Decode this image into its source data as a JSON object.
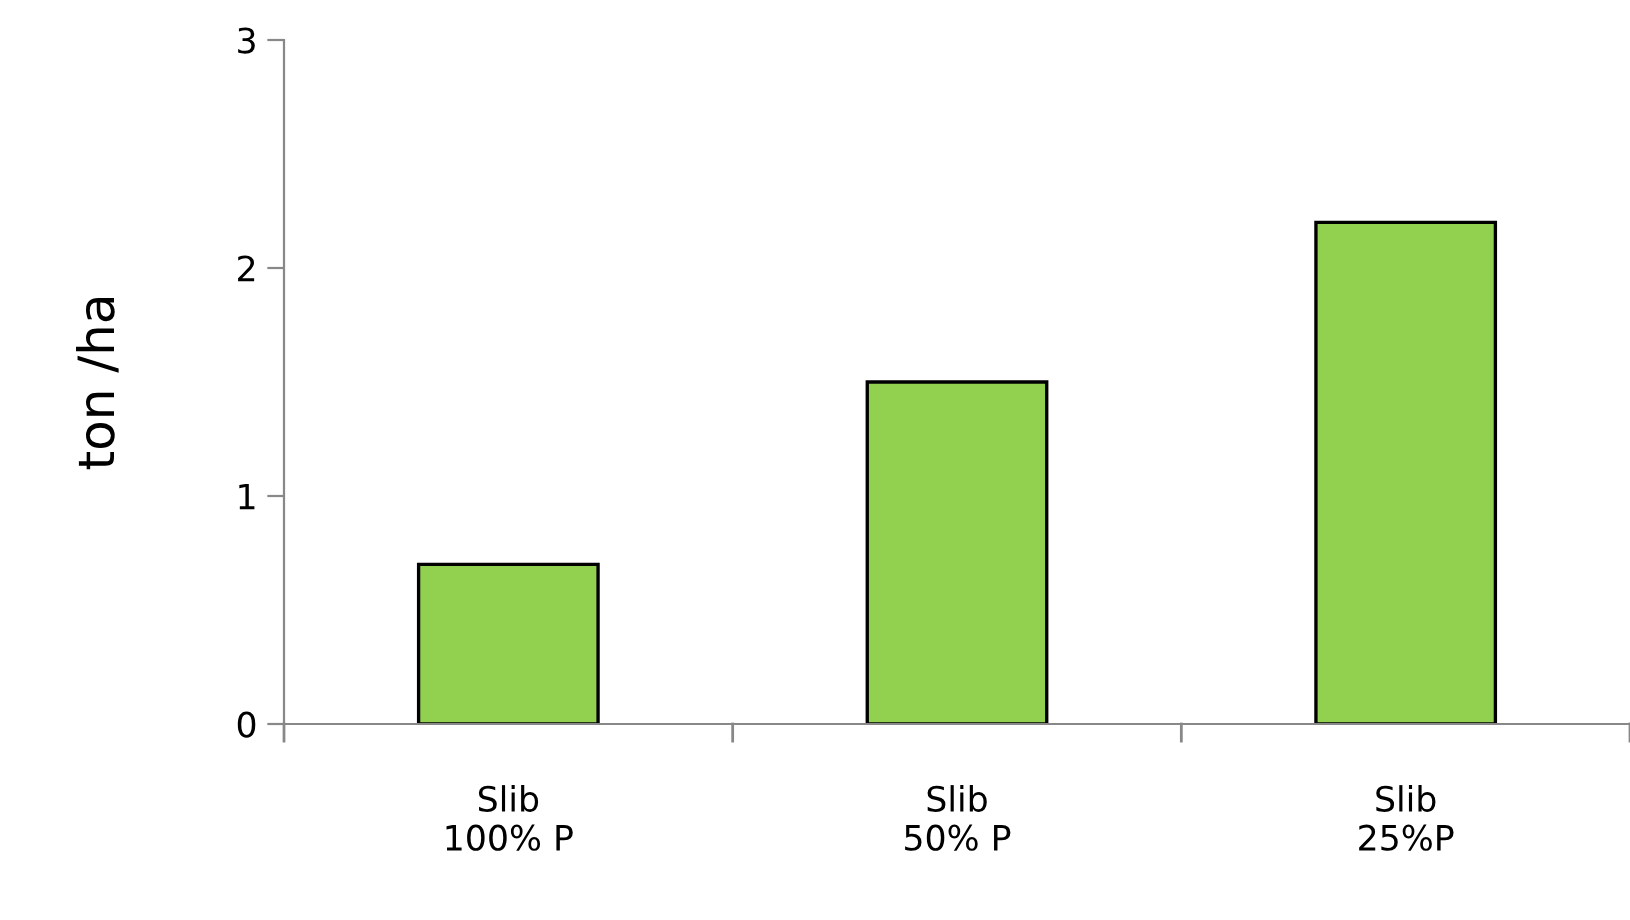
{
  "chart_data": {
    "type": "bar",
    "ylabel": "ton /ha",
    "categories": [
      "Slib\n100% P",
      "Slib\n50% P",
      "Slib\n25%P"
    ],
    "values": [
      0.7,
      1.5,
      2.2
    ],
    "color": "#92d050",
    "ylim": [
      0,
      3
    ],
    "yticks": [
      0,
      1,
      2,
      3
    ],
    "grid": false,
    "legend": false
  }
}
